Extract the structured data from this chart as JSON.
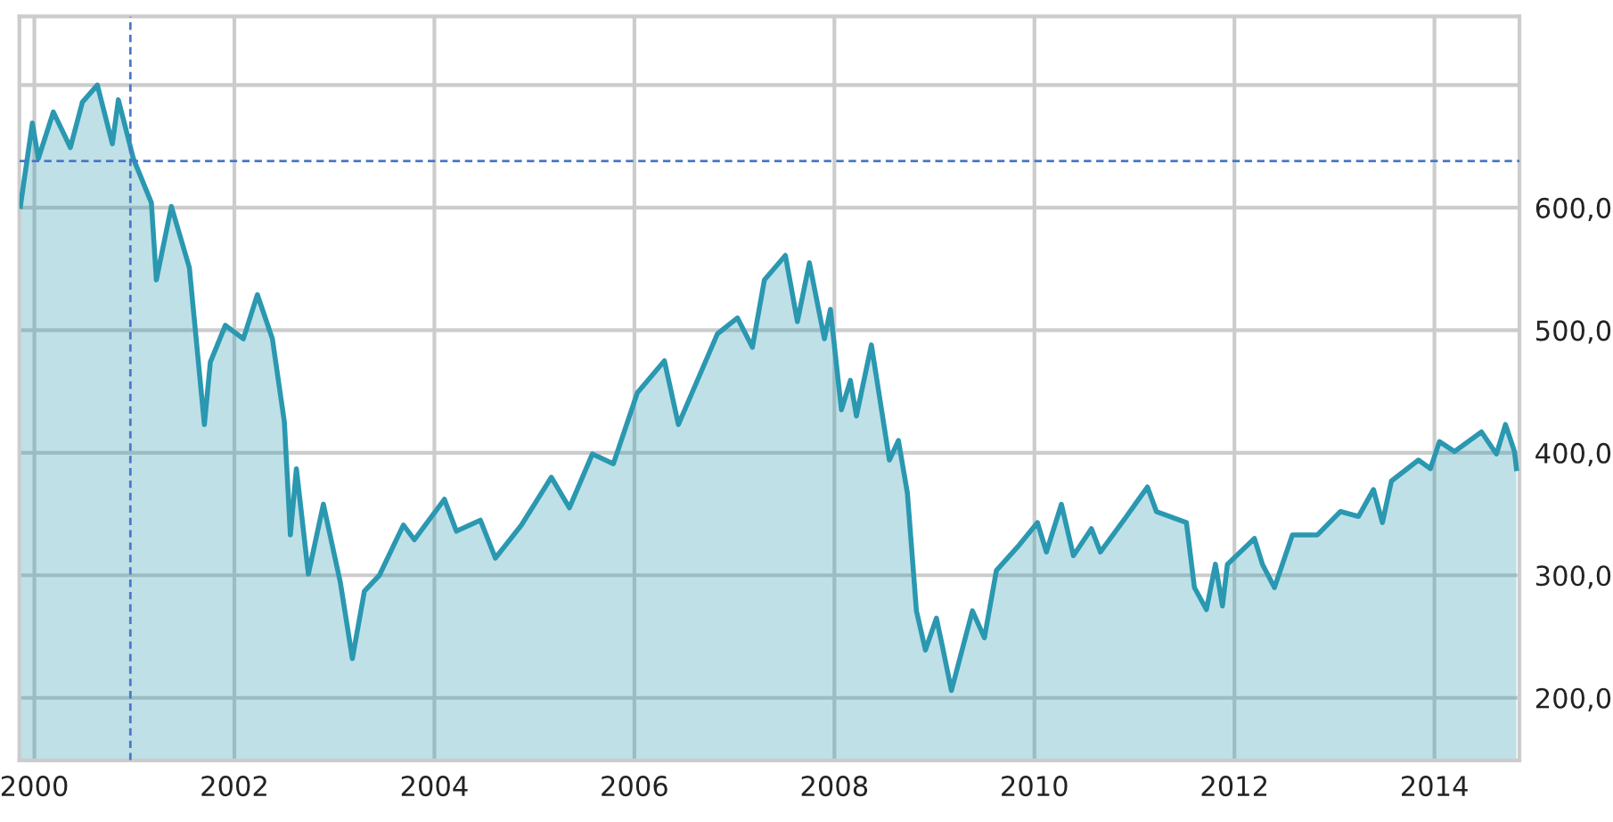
{
  "chart_data": {
    "type": "area",
    "x": [
      1999.86,
      1999.98,
      2000.04,
      2000.19,
      2000.36,
      2000.48,
      2000.63,
      2000.78,
      2000.84,
      2000.99,
      2001.17,
      2001.22,
      2001.37,
      2001.55,
      2001.7,
      2001.76,
      2001.91,
      2002.09,
      2002.23,
      2002.38,
      2002.5,
      2002.56,
      2002.62,
      2002.74,
      2002.89,
      2003.06,
      2003.18,
      2003.3,
      2003.45,
      2003.69,
      2003.8,
      2004.1,
      2004.22,
      2004.46,
      2004.61,
      2004.87,
      2005.17,
      2005.35,
      2005.58,
      2005.79,
      2006.03,
      2006.3,
      2006.44,
      2006.83,
      2007.03,
      2007.18,
      2007.3,
      2007.51,
      2007.63,
      2007.75,
      2007.9,
      2007.96,
      2008.07,
      2008.16,
      2008.22,
      2008.37,
      2008.55,
      2008.64,
      2008.73,
      2008.82,
      2008.91,
      2009.02,
      2009.08,
      2009.17,
      2009.38,
      2009.5,
      2009.62,
      2009.83,
      2010.03,
      2010.12,
      2010.27,
      2010.39,
      2010.57,
      2010.66,
      2010.92,
      2011.13,
      2011.22,
      2011.52,
      2011.6,
      2011.72,
      2011.81,
      2011.88,
      2011.93,
      2012.2,
      2012.28,
      2012.4,
      2012.58,
      2012.83,
      2013.06,
      2013.24,
      2013.39,
      2013.48,
      2013.57,
      2013.84,
      2013.96,
      2014.05,
      2014.2,
      2014.47,
      2014.62,
      2014.71,
      2014.8,
      2014.82
    ],
    "series": [
      {
        "color": "#2a98b0",
        "values": [
          601,
          669,
          640,
          678,
          649,
          686,
          700,
          652,
          688,
          640,
          604,
          541,
          601,
          551,
          423,
          474,
          504,
          493,
          529,
          493,
          425,
          333,
          387,
          301,
          358,
          294,
          232,
          287,
          300,
          341,
          329,
          362,
          336,
          345,
          314,
          341,
          380,
          355,
          399,
          391,
          449,
          475,
          423,
          497,
          510,
          486,
          541,
          561,
          507,
          555,
          493,
          517,
          435,
          459,
          430,
          488,
          394,
          410,
          367,
          271,
          239,
          265,
          242,
          206,
          271,
          249,
          304,
          323,
          343,
          319,
          358,
          316,
          338,
          319,
          348,
          372,
          352,
          343,
          290,
          272,
          309,
          275,
          309,
          330,
          309,
          290,
          333,
          333,
          352,
          348,
          370,
          343,
          377,
          394,
          387,
          409,
          401,
          417,
          399,
          423,
          401,
          387
        ]
      }
    ],
    "xlim": [
      1999.85,
      2014.85
    ],
    "xticks": [
      2000,
      2002,
      2004,
      2006,
      2008,
      2010,
      2012,
      2014
    ],
    "ylim": [
      149,
      756
    ],
    "yticks": [
      {
        "value": 200,
        "label": "200,0"
      },
      {
        "value": 300,
        "label": "300,0"
      },
      {
        "value": 400,
        "label": "400,0"
      },
      {
        "value": 500,
        "label": "500,0"
      },
      {
        "value": 600,
        "label": "600,0"
      },
      {
        "value": 700,
        "label": null
      }
    ],
    "grid": true,
    "ref_lines": [
      {
        "axis": "x",
        "value": 2000.96,
        "color": "#4a78c8",
        "line_style": "dashed"
      },
      {
        "axis": "y",
        "value": 638,
        "color": "#4a78c8",
        "line_style": "dashed"
      }
    ]
  }
}
